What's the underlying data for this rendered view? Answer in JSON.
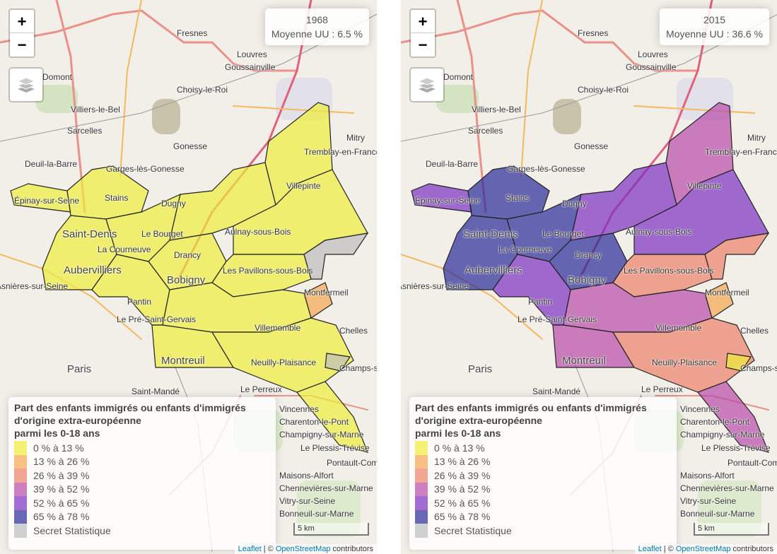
{
  "legend": {
    "title_lines": [
      "Part des enfants immigrés ou enfants d'immigrés",
      "d'origine extra-européenne",
      "parmi les 0-18 ans"
    ],
    "classes": [
      {
        "label": "0 % à 13 %",
        "color": "#eeee3a"
      },
      {
        "label": "13 % à 26 %",
        "color": "#f5a850"
      },
      {
        "label": "26 % à 39 %",
        "color": "#ec8066"
      },
      {
        "label": "39 % à 52 %",
        "color": "#b84aa8"
      },
      {
        "label": "52 % à 65 %",
        "color": "#7a2fc0"
      },
      {
        "label": "65 % à 78 %",
        "color": "#2a2a98"
      },
      {
        "label": "Secret Statistique",
        "color": "#bdbdbd"
      }
    ]
  },
  "controls": {
    "zoom_in": "+",
    "zoom_out": "−",
    "layers_icon": "layers-icon"
  },
  "scale": "5 km",
  "attribution": {
    "leaflet": "Leaflet",
    "sep": " | © ",
    "osm": "OpenStreetMap",
    "contributors": " contributors"
  },
  "maps": [
    {
      "year": "1968",
      "average": "Moyenne UU : 6.5 %",
      "region_classes": [
        0,
        0,
        0,
        0,
        0,
        0,
        0,
        0,
        0,
        0,
        1,
        0,
        0,
        0,
        0,
        6,
        6
      ]
    },
    {
      "year": "2015",
      "average": "Moyenne UU : 36.6 %",
      "region_classes": [
        4,
        5,
        5,
        5,
        5,
        4,
        3,
        4,
        4,
        2,
        1,
        3,
        3,
        2,
        3,
        2,
        0
      ]
    }
  ],
  "places": [
    "Domont",
    "Goussainville",
    "Louvres",
    "Villiers-le-Bel",
    "Sarcelles",
    "Gonesse",
    "Deuil-la-Barre",
    "Garges-lès-Gonesse",
    "Tremblay-en-France",
    "Mitry",
    "Épinay-sur-Seine",
    "Stains",
    "Dugny",
    "Villepinte",
    "Saint-Denis",
    "Le Bourget",
    "La Courneuve",
    "Drancy",
    "Aulnay-sous-Bois",
    "Aubervilliers",
    "Bobigny",
    "Les Pavillons-sous-Bois",
    "Montfermeil",
    "Pantin",
    "Le Pré-Saint-Gervais",
    "Villemomble",
    "Chelles",
    "Paris",
    "Montreuil",
    "Neuilly-Plaisance",
    "Champs-sur-Marne",
    "Saint-Mandé",
    "Le Perreux",
    "Vincennes",
    "Charenton-le-Pont",
    "Champigny-sur-Marne",
    "Le Plessis-Trévise",
    "Pontault-Combault",
    "Maisons-Alfort",
    "Chennevières-sur-Marne",
    "Vitry-sur-Seine",
    "Bonneuil-sur-Marne",
    "Choisy-le-Roi",
    "Asnières-sur-Seine",
    "Fresnes"
  ]
}
